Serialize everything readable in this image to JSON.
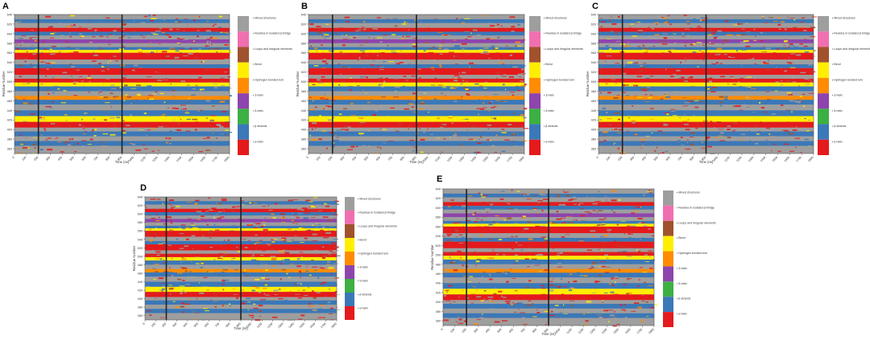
{
  "chart_data": [
    {
      "panel": "A"
    },
    {
      "panel": "B"
    },
    {
      "panel": "C"
    },
    {
      "panel": "D"
    },
    {
      "panel": "E"
    }
  ],
  "shared": {
    "type": "heatmap",
    "xlabel": "Time (ns)",
    "ylabel": "Residue Number",
    "x_ticks": [
      "0",
      "100",
      "200",
      "300",
      "400",
      "500",
      "600",
      "700",
      "800",
      "900",
      "1000",
      "1100",
      "1200",
      "1300",
      "1400",
      "1500",
      "1600",
      "1700",
      "1800"
    ],
    "xlim": [
      0,
      1800
    ],
    "y_ticks": [
      "360",
      "380",
      "400",
      "420",
      "440",
      "460",
      "480",
      "500",
      "520",
      "540",
      "560",
      "580",
      "600",
      "620",
      "640"
    ],
    "ylim": [
      350,
      640
    ],
    "vertical_markers_ns": [
      200,
      900
    ],
    "legend": [
      {
        "label": "Mixed structures",
        "color": "#9e9e9e"
      },
      {
        "label": "Residue in isolated β-bridge",
        "color": "#f06fb0"
      },
      {
        "label": "Loops and irregular elements",
        "color": "#a0522d"
      },
      {
        "label": "Bend",
        "color": "#ffee00"
      },
      {
        "label": "Hydrogen bonded turn",
        "color": "#ff8c00"
      },
      {
        "label": "3-helix",
        "color": "#8e44ad"
      },
      {
        "label": "5-helix",
        "color": "#3cb043"
      },
      {
        "label": "β-strands",
        "color": "#3b78b8"
      },
      {
        "label": "α-helix",
        "color": "#e41a1c"
      }
    ],
    "legend_alt_labels": {
      "B": {
        "7": "β-strands"
      }
    },
    "row_states": [
      {
        "from": 630,
        "to": 640,
        "state": "Mixed structures"
      },
      {
        "from": 622,
        "to": 630,
        "state": "β-strands"
      },
      {
        "from": 612,
        "to": 622,
        "state": "Mixed structures"
      },
      {
        "from": 604,
        "to": 612,
        "state": "α-helix"
      },
      {
        "from": 596,
        "to": 604,
        "state": "β-strands"
      },
      {
        "from": 588,
        "to": 596,
        "state": "Mixed structures"
      },
      {
        "from": 580,
        "to": 588,
        "state": "3-helix"
      },
      {
        "from": 572,
        "to": 580,
        "state": "Mixed structures"
      },
      {
        "from": 566,
        "to": 572,
        "state": "β-strands"
      },
      {
        "from": 560,
        "to": 566,
        "state": "Bend"
      },
      {
        "from": 546,
        "to": 560,
        "state": "α-helix"
      },
      {
        "from": 536,
        "to": 546,
        "state": "Mixed structures"
      },
      {
        "from": 528,
        "to": 536,
        "state": "β-strands"
      },
      {
        "from": 514,
        "to": 528,
        "state": "α-helix"
      },
      {
        "from": 506,
        "to": 514,
        "state": "Mixed structures"
      },
      {
        "from": 498,
        "to": 506,
        "state": "α-helix"
      },
      {
        "from": 490,
        "to": 498,
        "state": "Bend"
      },
      {
        "from": 480,
        "to": 490,
        "state": "β-strands"
      },
      {
        "from": 470,
        "to": 480,
        "state": "Mixed structures"
      },
      {
        "from": 462,
        "to": 470,
        "state": "Hydrogen bonded turn"
      },
      {
        "from": 452,
        "to": 462,
        "state": "β-strands"
      },
      {
        "from": 440,
        "to": 452,
        "state": "Mixed structures"
      },
      {
        "from": 428,
        "to": 440,
        "state": "β-strands"
      },
      {
        "from": 416,
        "to": 428,
        "state": "Bend"
      },
      {
        "from": 404,
        "to": 416,
        "state": "α-helix"
      },
      {
        "from": 396,
        "to": 404,
        "state": "Mixed structures"
      },
      {
        "from": 386,
        "to": 396,
        "state": "β-strands"
      },
      {
        "from": 376,
        "to": 386,
        "state": "Mixed structures"
      },
      {
        "from": 366,
        "to": 376,
        "state": "β-strands"
      },
      {
        "from": 350,
        "to": 366,
        "state": "Mixed structures"
      }
    ]
  }
}
